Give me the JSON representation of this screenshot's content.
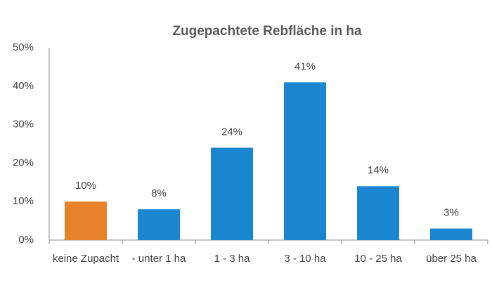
{
  "chart_data": {
    "type": "bar",
    "title": "Zugepachtete Rebfläche in ha",
    "categories": [
      "keine Zupacht",
      "- unter 1 ha",
      "1 -  3 ha",
      "3 -  10 ha",
      "10 -  25 ha",
      "über 25 ha"
    ],
    "values": [
      10,
      8,
      24,
      41,
      14,
      3
    ],
    "value_labels": [
      "10%",
      "8%",
      "24%",
      "41%",
      "14%",
      "3%"
    ],
    "colors": [
      "#e8822a",
      "#1a86cf",
      "#1a86cf",
      "#1a86cf",
      "#1a86cf",
      "#1a86cf"
    ],
    "ylim": [
      0,
      50
    ],
    "yticks": [
      {
        "value": 0,
        "label": "0%"
      },
      {
        "value": 10,
        "label": "10%"
      },
      {
        "value": 20,
        "label": "20%"
      },
      {
        "value": 30,
        "label": "30%"
      },
      {
        "value": 40,
        "label": "40%"
      },
      {
        "value": 50,
        "label": "50%"
      }
    ],
    "grid": false
  }
}
